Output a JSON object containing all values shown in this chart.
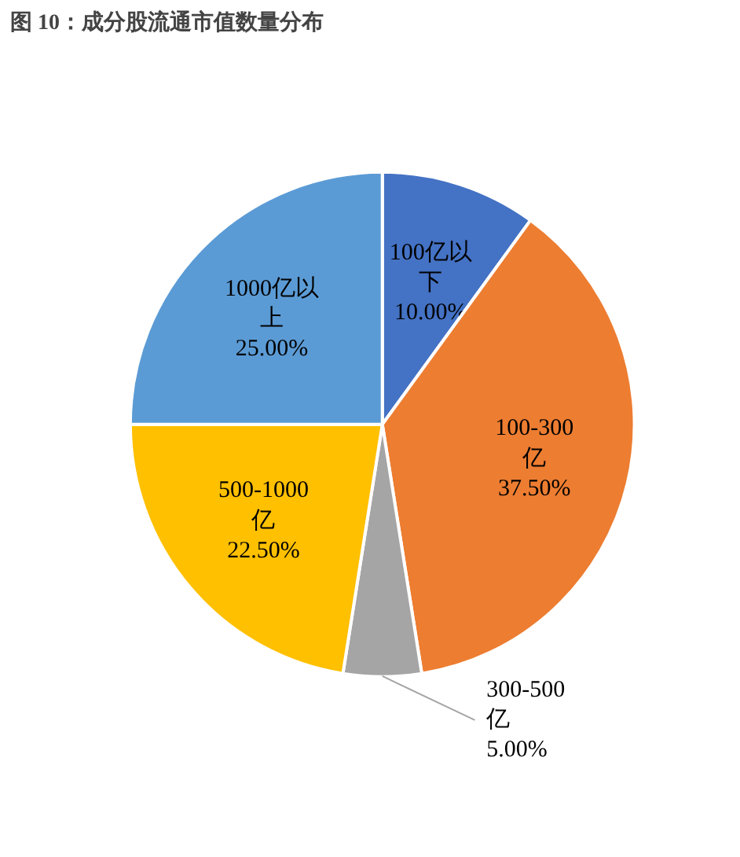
{
  "chart_data": {
    "type": "pie",
    "title": "图 10：成分股流通市值数量分布",
    "categories": [
      "100亿以下",
      "100-300亿",
      "300-500亿",
      "500-1000亿",
      "1000亿以上"
    ],
    "values": [
      10,
      37.5,
      5,
      22.5,
      25
    ],
    "value_labels": [
      "10.00%",
      "37.50%",
      "5.00%",
      "22.50%",
      "25.00%"
    ],
    "colors": [
      "#4472c4",
      "#ed7d31",
      "#a5a5a5",
      "#ffc000",
      "#5b9bd5"
    ]
  }
}
